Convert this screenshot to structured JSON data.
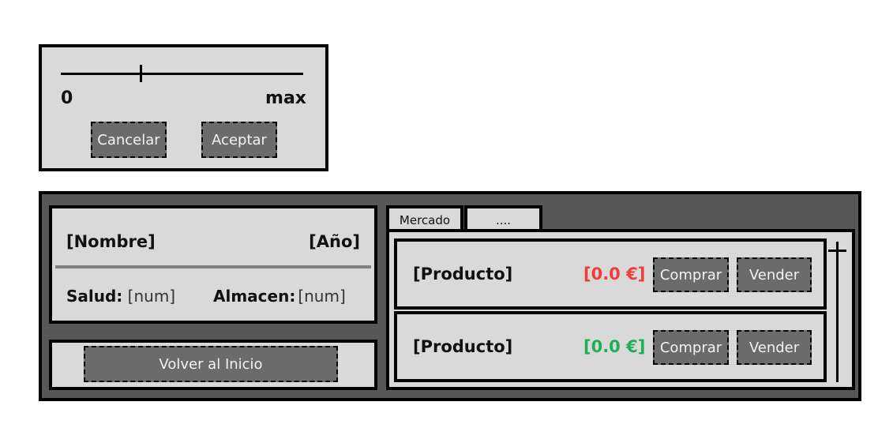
{
  "slider_dialog": {
    "min_label": "0",
    "max_label": "max",
    "cancel_label": "Cancelar",
    "accept_label": "Aceptar",
    "slider_fraction": 0.33
  },
  "player": {
    "name": "[Nombre]",
    "year": "[Año]",
    "health_label": "Salud:",
    "health_value": "[num]",
    "storage_label": "Almacen:",
    "storage_value": "[num]"
  },
  "home_button_label": "Volver al Inicio",
  "tabs": [
    {
      "label": "Mercado"
    },
    {
      "label": "...."
    }
  ],
  "market": {
    "items": [
      {
        "product": "[Producto]",
        "price": "[0.0 €]",
        "price_color": "#f23b3b",
        "buy_label": "Comprar",
        "sell_label": "Vender"
      },
      {
        "product": "[Producto]",
        "price": "[0.0 €]",
        "price_color": "#1fae55",
        "buy_label": "Comprar",
        "sell_label": "Vender"
      }
    ]
  },
  "colors": {
    "panel_bg": "#d9d9d9",
    "frame_bg": "#575757",
    "button_bg": "#6b6b6b"
  }
}
